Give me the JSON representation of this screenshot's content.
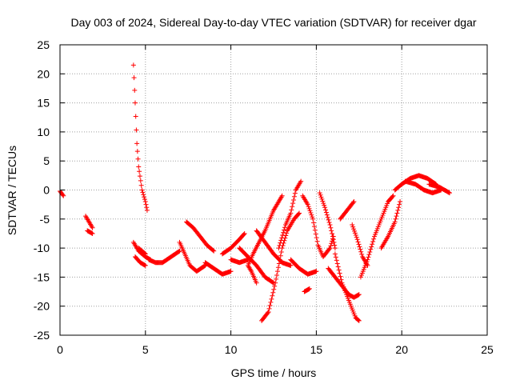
{
  "chart_data": {
    "type": "scatter",
    "title": "Day 003 of 2024, Sidereal Day-to-day VTEC variation (SDTVAR) for receiver dgar",
    "xlabel": "GPS time / hours",
    "ylabel": "SDTVAR / TECUs",
    "xlim": [
      0,
      25
    ],
    "ylim": [
      -25,
      25
    ],
    "xticks": [
      0,
      5,
      10,
      15,
      20,
      25
    ],
    "yticks": [
      -25,
      -20,
      -15,
      -10,
      -5,
      0,
      5,
      10,
      15,
      20,
      25
    ],
    "grid": true,
    "marker": "+",
    "series_color": "#ff0000",
    "tracks": [
      [
        [
          0.0,
          -0.2
        ],
        [
          0.2,
          -1.0
        ]
      ],
      [
        [
          1.5,
          -4.5
        ],
        [
          1.7,
          -5.5
        ],
        [
          1.9,
          -6.5
        ],
        [
          1.9,
          -7.5
        ],
        [
          1.6,
          -7.0
        ]
      ],
      [
        [
          4.3,
          21.5
        ],
        [
          4.4,
          15.0
        ],
        [
          4.5,
          8.0
        ],
        [
          4.6,
          4.0
        ],
        [
          4.8,
          0.0
        ],
        [
          5.0,
          -2.0
        ],
        [
          5.1,
          -3.5
        ]
      ],
      [
        [
          4.3,
          -9.0
        ],
        [
          4.6,
          -10.5
        ],
        [
          5.0,
          -11.5
        ],
        [
          5.3,
          -12.0
        ]
      ],
      [
        [
          4.4,
          -11.5
        ],
        [
          4.7,
          -12.5
        ],
        [
          5.0,
          -13.0
        ]
      ],
      [
        [
          4.6,
          -10.0
        ],
        [
          5.0,
          -11.0
        ]
      ],
      [
        [
          5.2,
          -12.0
        ],
        [
          5.6,
          -12.5
        ],
        [
          6.0,
          -12.5
        ],
        [
          6.5,
          -11.5
        ],
        [
          7.0,
          -10.5
        ]
      ],
      [
        [
          7.0,
          -9.0
        ],
        [
          7.3,
          -11.0
        ],
        [
          7.6,
          -13.0
        ],
        [
          8.0,
          -14.0
        ],
        [
          8.5,
          -13.0
        ]
      ],
      [
        [
          7.4,
          -5.5
        ],
        [
          7.8,
          -6.5
        ],
        [
          8.2,
          -8.0
        ],
        [
          8.6,
          -9.5
        ],
        [
          9.0,
          -10.5
        ]
      ],
      [
        [
          8.5,
          -12.5
        ],
        [
          9.0,
          -13.5
        ],
        [
          9.5,
          -14.5
        ],
        [
          10.0,
          -14.0
        ]
      ],
      [
        [
          9.5,
          -11.0
        ],
        [
          10.0,
          -10.0
        ],
        [
          10.5,
          -8.5
        ],
        [
          10.8,
          -7.5
        ]
      ],
      [
        [
          10.0,
          -12.0
        ],
        [
          10.5,
          -12.5
        ],
        [
          11.0,
          -12.0
        ]
      ],
      [
        [
          10.5,
          -10.0
        ],
        [
          11.0,
          -11.5
        ],
        [
          11.5,
          -13.0
        ],
        [
          12.0,
          -15.0
        ],
        [
          12.5,
          -16.0
        ]
      ],
      [
        [
          11.5,
          -16.0
        ],
        [
          11.2,
          -14.0
        ],
        [
          11.0,
          -13.0
        ],
        [
          11.3,
          -11.0
        ],
        [
          12.0,
          -7.0
        ],
        [
          12.5,
          -3.5
        ],
        [
          13.0,
          -1.0
        ]
      ],
      [
        [
          11.8,
          -22.5
        ],
        [
          12.2,
          -21.0
        ],
        [
          12.6,
          -16.0
        ],
        [
          13.0,
          -10.0
        ],
        [
          13.3,
          -7.0
        ],
        [
          13.7,
          -5.0
        ],
        [
          14.0,
          -4.0
        ]
      ],
      [
        [
          11.5,
          -7.0
        ],
        [
          12.0,
          -9.0
        ],
        [
          12.5,
          -11.0
        ],
        [
          13.0,
          -12.5
        ],
        [
          13.5,
          -13.0
        ]
      ],
      [
        [
          12.8,
          -10.0
        ],
        [
          13.2,
          -6.0
        ],
        [
          13.5,
          -4.0
        ],
        [
          13.8,
          0.0
        ],
        [
          14.1,
          1.5
        ]
      ],
      [
        [
          13.5,
          -12.0
        ],
        [
          14.0,
          -13.5
        ],
        [
          14.5,
          -14.5
        ],
        [
          15.0,
          -14.0
        ]
      ],
      [
        [
          14.3,
          -17.5
        ],
        [
          14.6,
          -17.0
        ]
      ],
      [
        [
          14.2,
          -1.0
        ],
        [
          14.5,
          -2.5
        ],
        [
          14.8,
          -5.0
        ],
        [
          15.1,
          -9.5
        ],
        [
          15.4,
          -11.5
        ],
        [
          15.8,
          -10.0
        ],
        [
          16.0,
          -8.0
        ]
      ],
      [
        [
          15.2,
          -0.5
        ],
        [
          15.5,
          -3.0
        ],
        [
          15.8,
          -6.0
        ],
        [
          16.0,
          -8.5
        ],
        [
          16.1,
          -10.0
        ]
      ],
      [
        [
          15.7,
          -13.5
        ],
        [
          16.1,
          -15.0
        ],
        [
          16.5,
          -16.5
        ],
        [
          16.9,
          -18.0
        ],
        [
          17.2,
          -18.5
        ],
        [
          17.5,
          -18.0
        ]
      ],
      [
        [
          16.1,
          -11.0
        ],
        [
          16.5,
          -16.0
        ],
        [
          16.9,
          -19.0
        ],
        [
          17.3,
          -22.0
        ],
        [
          17.5,
          -22.5
        ]
      ],
      [
        [
          16.4,
          -5.0
        ],
        [
          16.8,
          -3.5
        ],
        [
          17.2,
          -2.0
        ]
      ],
      [
        [
          17.1,
          -6.0
        ],
        [
          17.4,
          -8.5
        ],
        [
          17.7,
          -11.5
        ],
        [
          18.0,
          -13.0
        ]
      ],
      [
        [
          17.6,
          -15.0
        ],
        [
          18.0,
          -12.0
        ],
        [
          18.4,
          -8.0
        ],
        [
          18.8,
          -5.0
        ],
        [
          19.2,
          -2.0
        ],
        [
          19.5,
          -1.0
        ]
      ],
      [
        [
          18.8,
          -10.0
        ],
        [
          19.2,
          -8.0
        ],
        [
          19.6,
          -5.5
        ],
        [
          19.9,
          -2.0
        ]
      ],
      [
        [
          19.6,
          0.0
        ],
        [
          20.0,
          1.0
        ],
        [
          20.5,
          2.0
        ],
        [
          21.0,
          2.5
        ],
        [
          21.5,
          2.0
        ],
        [
          22.0,
          1.0
        ]
      ],
      [
        [
          20.2,
          1.5
        ],
        [
          20.8,
          1.0
        ],
        [
          21.3,
          0.0
        ],
        [
          21.8,
          -0.5
        ],
        [
          22.3,
          0.0
        ]
      ],
      [
        [
          21.6,
          1.0
        ],
        [
          22.2,
          0.5
        ],
        [
          22.8,
          -0.5
        ]
      ]
    ]
  }
}
